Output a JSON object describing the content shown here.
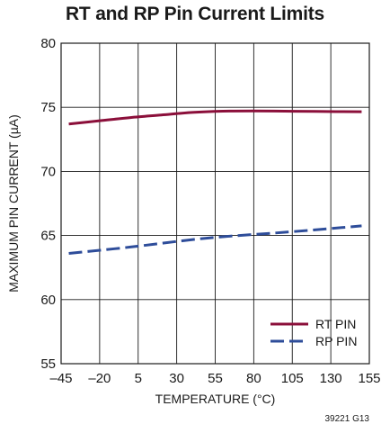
{
  "chart_data": {
    "type": "line",
    "title": "RT and RP Pin Current Limits",
    "xlabel": "TEMPERATURE (°C)",
    "ylabel": "MAXIMUM PIN CURRENT (µA)",
    "xlim": [
      -45,
      155
    ],
    "ylim": [
      55,
      80
    ],
    "xticks": [
      -45,
      -20,
      5,
      30,
      55,
      80,
      105,
      130,
      155
    ],
    "xtick_labels": [
      "–45",
      "–20",
      "5",
      "30",
      "55",
      "80",
      "105",
      "130",
      "155"
    ],
    "yticks": [
      55,
      60,
      65,
      70,
      75,
      80
    ],
    "ytick_labels": [
      "55",
      "60",
      "65",
      "70",
      "75",
      "80"
    ],
    "grid": true,
    "legend_position": "bottom-right",
    "series": [
      {
        "name": "RT PIN",
        "color": "#8b0f3a",
        "style": "solid",
        "x": [
          -40,
          -20,
          0,
          20,
          40,
          60,
          80,
          100,
          120,
          150
        ],
        "y": [
          73.7,
          73.95,
          74.2,
          74.4,
          74.6,
          74.7,
          74.72,
          74.7,
          74.68,
          74.65
        ]
      },
      {
        "name": "RP PIN",
        "color": "#2e4d9a",
        "style": "dashed",
        "x": [
          -40,
          0,
          50,
          100,
          150
        ],
        "y": [
          63.6,
          64.1,
          64.8,
          65.25,
          65.75
        ]
      }
    ],
    "annotation": "39221 G13"
  }
}
